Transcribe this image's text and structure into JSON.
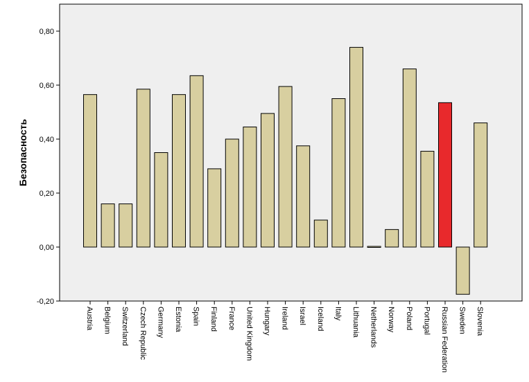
{
  "chart_data": {
    "type": "bar",
    "title": "",
    "xlabel": "",
    "ylabel": "Безопасность",
    "ylim": [
      -0.2,
      0.9
    ],
    "yticks": [
      "-0,20",
      "0,00",
      "0,20",
      "0,40",
      "0,60",
      "0,80"
    ],
    "grid": false,
    "categories": [
      "Austria",
      "Belgium",
      "Switzerland",
      "Czech Republic",
      "Germany",
      "Estonia",
      "Spain",
      "Finland",
      "France",
      "United Kingdom",
      "Hungary",
      "Ireland",
      "Israel",
      "Iceland",
      "Italy",
      "Lithuania",
      "Netherlands",
      "Norway",
      "Poland",
      "Portugal",
      "Russian Federation",
      "Sweden",
      "Slovenia"
    ],
    "values": [
      0.565,
      0.16,
      0.16,
      0.585,
      0.35,
      0.565,
      0.635,
      0.29,
      0.4,
      0.445,
      0.495,
      0.595,
      0.375,
      0.1,
      0.55,
      0.74,
      0.0,
      0.065,
      0.66,
      0.355,
      0.535,
      -0.175,
      0.46
    ],
    "highlight": "Russian Federation",
    "colors": {
      "bar": "#d8cfa0",
      "highlight": "#e8292c",
      "plot_bg": "#efefef",
      "outline": "#000000"
    }
  }
}
